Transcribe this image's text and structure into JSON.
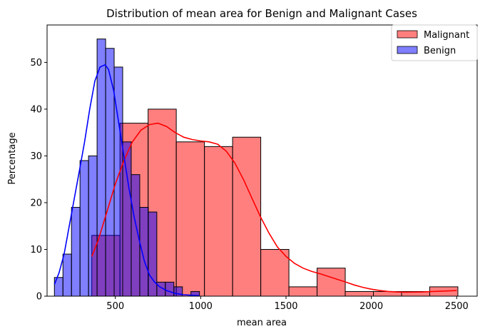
{
  "chart_data": {
    "type": "histogram",
    "title": "Distribution of mean area for Benign and Malignant Cases",
    "xlabel": "mean area",
    "ylabel": "Percentage",
    "xlim": [
      100,
      2620
    ],
    "ylim": [
      0,
      58
    ],
    "xticks": [
      500,
      1000,
      1500,
      2000,
      2500
    ],
    "yticks": [
      0,
      10,
      20,
      30,
      40,
      50
    ],
    "grid": false,
    "legend_position": "top-right",
    "series": [
      {
        "name": "Malignant",
        "color": "#ff0000",
        "bins": [
          {
            "x0": 362,
            "x1": 527,
            "value": 13
          },
          {
            "x0": 527,
            "x1": 692,
            "value": 37
          },
          {
            "x0": 692,
            "x1": 857,
            "value": 40
          },
          {
            "x0": 857,
            "x1": 1022,
            "value": 33
          },
          {
            "x0": 1022,
            "x1": 1187,
            "value": 32
          },
          {
            "x0": 1187,
            "x1": 1352,
            "value": 34
          },
          {
            "x0": 1352,
            "x1": 1517,
            "value": 10
          },
          {
            "x0": 1517,
            "x1": 1682,
            "value": 2
          },
          {
            "x0": 1682,
            "x1": 1847,
            "value": 6
          },
          {
            "x0": 1847,
            "x1": 2012,
            "value": 1
          },
          {
            "x0": 2012,
            "x1": 2177,
            "value": 1
          },
          {
            "x0": 2177,
            "x1": 2342,
            "value": 1
          },
          {
            "x0": 2342,
            "x1": 2507,
            "value": 2
          }
        ],
        "kde": [
          [
            362,
            8.5
          ],
          [
            400,
            12
          ],
          [
            450,
            18
          ],
          [
            500,
            24
          ],
          [
            550,
            29
          ],
          [
            600,
            33
          ],
          [
            650,
            35.5
          ],
          [
            700,
            36.7
          ],
          [
            750,
            37
          ],
          [
            800,
            36.3
          ],
          [
            850,
            35
          ],
          [
            900,
            34
          ],
          [
            950,
            33.5
          ],
          [
            1000,
            33.2
          ],
          [
            1050,
            33
          ],
          [
            1100,
            32.5
          ],
          [
            1150,
            31
          ],
          [
            1200,
            28.5
          ],
          [
            1250,
            25
          ],
          [
            1300,
            21
          ],
          [
            1350,
            17
          ],
          [
            1400,
            13.5
          ],
          [
            1450,
            10.5
          ],
          [
            1500,
            8.5
          ],
          [
            1550,
            7
          ],
          [
            1600,
            6
          ],
          [
            1650,
            5.3
          ],
          [
            1700,
            4.8
          ],
          [
            1750,
            4.2
          ],
          [
            1800,
            3.6
          ],
          [
            1850,
            3
          ],
          [
            1900,
            2.4
          ],
          [
            1950,
            1.9
          ],
          [
            2000,
            1.5
          ],
          [
            2050,
            1.2
          ],
          [
            2100,
            1
          ],
          [
            2150,
            0.9
          ],
          [
            2200,
            0.85
          ],
          [
            2300,
            0.9
          ],
          [
            2400,
            1.05
          ],
          [
            2500,
            1.2
          ]
        ]
      },
      {
        "name": "Benign",
        "color": "#0000ff",
        "bins": [
          {
            "x0": 143,
            "x1": 193,
            "value": 4
          },
          {
            "x0": 193,
            "x1": 243,
            "value": 9
          },
          {
            "x0": 243,
            "x1": 293,
            "value": 19
          },
          {
            "x0": 293,
            "x1": 343,
            "value": 29
          },
          {
            "x0": 343,
            "x1": 393,
            "value": 30
          },
          {
            "x0": 393,
            "x1": 443,
            "value": 55
          },
          {
            "x0": 443,
            "x1": 493,
            "value": 53
          },
          {
            "x0": 493,
            "x1": 543,
            "value": 49
          },
          {
            "x0": 543,
            "x1": 593,
            "value": 33
          },
          {
            "x0": 593,
            "x1": 643,
            "value": 26
          },
          {
            "x0": 643,
            "x1": 693,
            "value": 19
          },
          {
            "x0": 693,
            "x1": 743,
            "value": 18
          },
          {
            "x0": 743,
            "x1": 793,
            "value": 3
          },
          {
            "x0": 793,
            "x1": 843,
            "value": 3
          },
          {
            "x0": 843,
            "x1": 893,
            "value": 2
          },
          {
            "x0": 893,
            "x1": 943,
            "value": 0
          },
          {
            "x0": 943,
            "x1": 993,
            "value": 1
          }
        ],
        "kde": [
          [
            143,
            2.5
          ],
          [
            170,
            5
          ],
          [
            200,
            9
          ],
          [
            230,
            15
          ],
          [
            260,
            21
          ],
          [
            290,
            27
          ],
          [
            320,
            33
          ],
          [
            350,
            40
          ],
          [
            380,
            46
          ],
          [
            410,
            49
          ],
          [
            440,
            49.5
          ],
          [
            460,
            48.5
          ],
          [
            490,
            44
          ],
          [
            520,
            37
          ],
          [
            550,
            30
          ],
          [
            580,
            23
          ],
          [
            610,
            17
          ],
          [
            640,
            12
          ],
          [
            670,
            7.5
          ],
          [
            700,
            4.5
          ],
          [
            730,
            3
          ],
          [
            760,
            2
          ],
          [
            800,
            1.2
          ],
          [
            850,
            0.6
          ],
          [
            900,
            0.3
          ],
          [
            950,
            0.2
          ],
          [
            993,
            0.1
          ]
        ]
      }
    ]
  }
}
